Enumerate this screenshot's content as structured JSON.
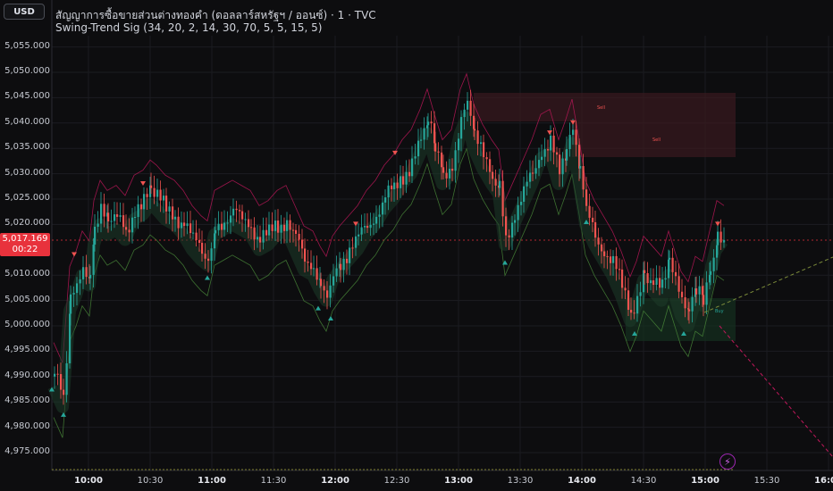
{
  "toolbar": {
    "currency_label": "USD"
  },
  "legend": {
    "title": "สัญญาการซื้อขายส่วนต่างทองคำ (ดอลลาร์สหรัฐฯ / ออนซ์) · 1 · TVC",
    "indicator": "Swing-Trend Sig (34, 20, 2, 14, 30, 70, 5, 5, 15, 5)"
  },
  "price_axis": {
    "labels": [
      "5,055.000",
      "5,050.000",
      "5,045.000",
      "5,040.000",
      "5,035.000",
      "5,030.000",
      "5,025.000",
      "5,020.000",
      "5,010.000",
      "5,005.000",
      "5,000.000",
      "4,995.000",
      "4,990.000",
      "4,985.000",
      "4,980.000",
      "4,975.000"
    ],
    "current_price": "5,017.169",
    "countdown": "00:22"
  },
  "time_axis": {
    "labels": [
      {
        "text": "10:00",
        "bold": true
      },
      {
        "text": "10:30",
        "bold": false
      },
      {
        "text": "11:00",
        "bold": true
      },
      {
        "text": "11:30",
        "bold": false
      },
      {
        "text": "12:00",
        "bold": true
      },
      {
        "text": "12:30",
        "bold": false
      },
      {
        "text": "13:00",
        "bold": true
      },
      {
        "text": "13:30",
        "bold": false
      },
      {
        "text": "14:00",
        "bold": true
      },
      {
        "text": "14:30",
        "bold": false
      },
      {
        "text": "15:00",
        "bold": true
      },
      {
        "text": "15:30",
        "bold": false
      },
      {
        "text": "16:00",
        "bold": true
      }
    ]
  },
  "zones": [
    {
      "label": "Sell"
    },
    {
      "label": "Sell"
    },
    {
      "label": "Buy"
    }
  ],
  "colors": {
    "up": "#26a69a",
    "down": "#ef5350",
    "band": "#c2185b",
    "price_badge": "#e8323c",
    "background": "#0d0d0f"
  },
  "icons": {
    "alert": "lightning-icon"
  }
}
